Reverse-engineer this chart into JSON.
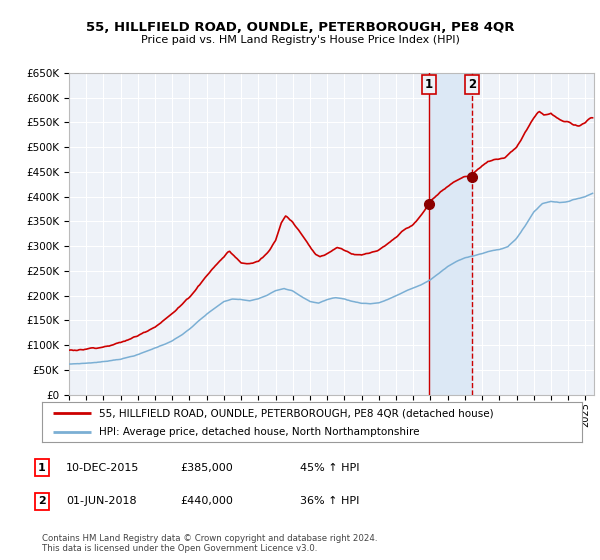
{
  "title": "55, HILLFIELD ROAD, OUNDLE, PETERBOROUGH, PE8 4QR",
  "subtitle": "Price paid vs. HM Land Registry's House Price Index (HPI)",
  "legend_line1": "55, HILLFIELD ROAD, OUNDLE, PETERBOROUGH, PE8 4QR (detached house)",
  "legend_line2": "HPI: Average price, detached house, North Northamptonshire",
  "sale1_date": "10-DEC-2015",
  "sale1_price": 385000,
  "sale1_label": "45% ↑ HPI",
  "sale2_date": "01-JUN-2018",
  "sale2_price": 440000,
  "sale2_label": "36% ↑ HPI",
  "footer": "Contains HM Land Registry data © Crown copyright and database right 2024.\nThis data is licensed under the Open Government Licence v3.0.",
  "hpi_color": "#7bafd4",
  "price_color": "#cc0000",
  "sale_marker_color": "#8b0000",
  "vline1_color": "#cc0000",
  "vline2_color": "#cc0000",
  "shade_color": "#dce8f5",
  "bg_color": "#ffffff",
  "plot_bg_color": "#eef2f8",
  "grid_color": "#ffffff",
  "ylim_min": 0,
  "ylim_max": 650000,
  "xlim_min": 1995.0,
  "xlim_max": 2025.5
}
